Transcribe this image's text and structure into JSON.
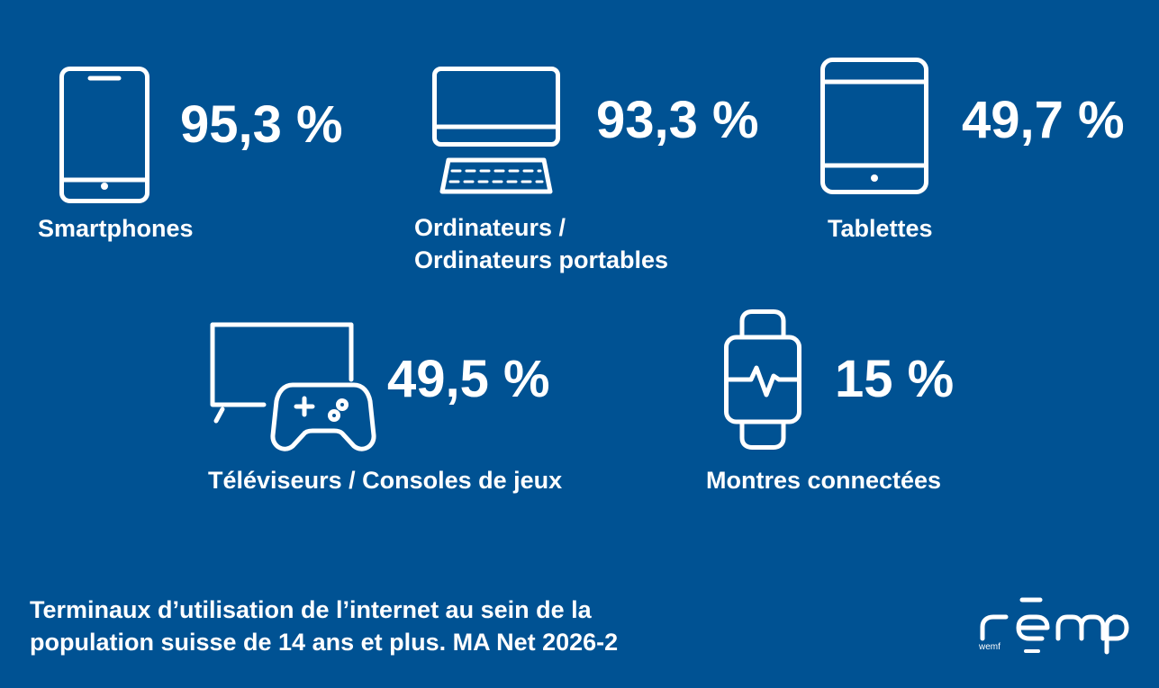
{
  "chart_data": {
    "type": "table",
    "title": "Terminaux d’utilisation de l’internet au sein de la population suisse de 14 ans et plus. MA Net 2026-2",
    "categories": [
      "Smartphones",
      "Ordinateurs / Ordinateurs portables",
      "Tablettes",
      "Téléviseurs / Consoles de jeux",
      "Montres connectées"
    ],
    "values": [
      95.3,
      93.3,
      49.7,
      49.5,
      15
    ],
    "unit": "%",
    "items": [
      {
        "icon": "smartphone-icon",
        "value_text": "95,3 %",
        "label": "Smartphones"
      },
      {
        "icon": "desktop-computer-icon",
        "value_text": "93,3 %",
        "label_line1": "Ordinateurs /",
        "label_line2": "Ordinateurs portables"
      },
      {
        "icon": "tablet-icon",
        "value_text": "49,7 %",
        "label": "Tablettes"
      },
      {
        "icon": "tv-gamepad-icon",
        "value_text": "49,5 %",
        "label": "Téléviseurs / Consoles de jeux"
      },
      {
        "icon": "smartwatch-icon",
        "value_text": "15 %",
        "label": "Montres connectées"
      }
    ]
  },
  "footer": {
    "line1": "Terminaux d’utilisation de l’internet au sein de la",
    "line2": "population suisse de 14 ans et plus. MA Net 2026-2"
  },
  "logo": {
    "sub": "wemf"
  },
  "colors": {
    "background": "#005293",
    "foreground": "#ffffff"
  }
}
